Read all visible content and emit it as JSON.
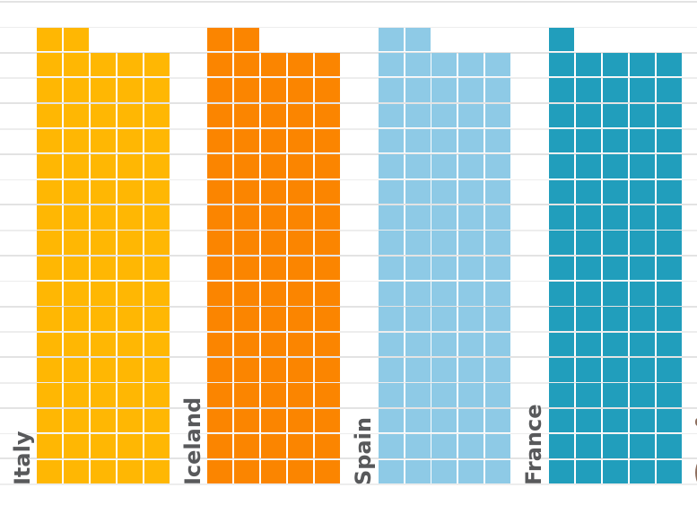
{
  "chart_data": {
    "type": "waffle",
    "title": "",
    "columns_per_country": 5,
    "full_rows_visible": 17,
    "series": [
      {
        "name": "Italy",
        "color": "#FFB703",
        "value": 87,
        "full_rows": 17,
        "top_row_squares": 2
      },
      {
        "name": "Iceland",
        "color": "#FB8500",
        "value": 87,
        "full_rows": 17,
        "top_row_squares": 2
      },
      {
        "name": "Spain",
        "color": "#8ECAE6",
        "value": 87,
        "full_rows": 17,
        "top_row_squares": 2
      },
      {
        "name": "France",
        "color": "#219EBC",
        "value": 86,
        "full_rows": 17,
        "top_row_squares": 1
      }
    ],
    "grid": {
      "background": "#ffffff",
      "major_color": "#e3e3e3",
      "minor_color": "#ededed",
      "major_count": 10,
      "minor_count": 10
    },
    "axis_labels": {
      "color": "#58595B",
      "rotation_deg": 90
    },
    "cropped_next_label": {
      "present": true,
      "fragment_color": "#8d6e5e"
    }
  }
}
